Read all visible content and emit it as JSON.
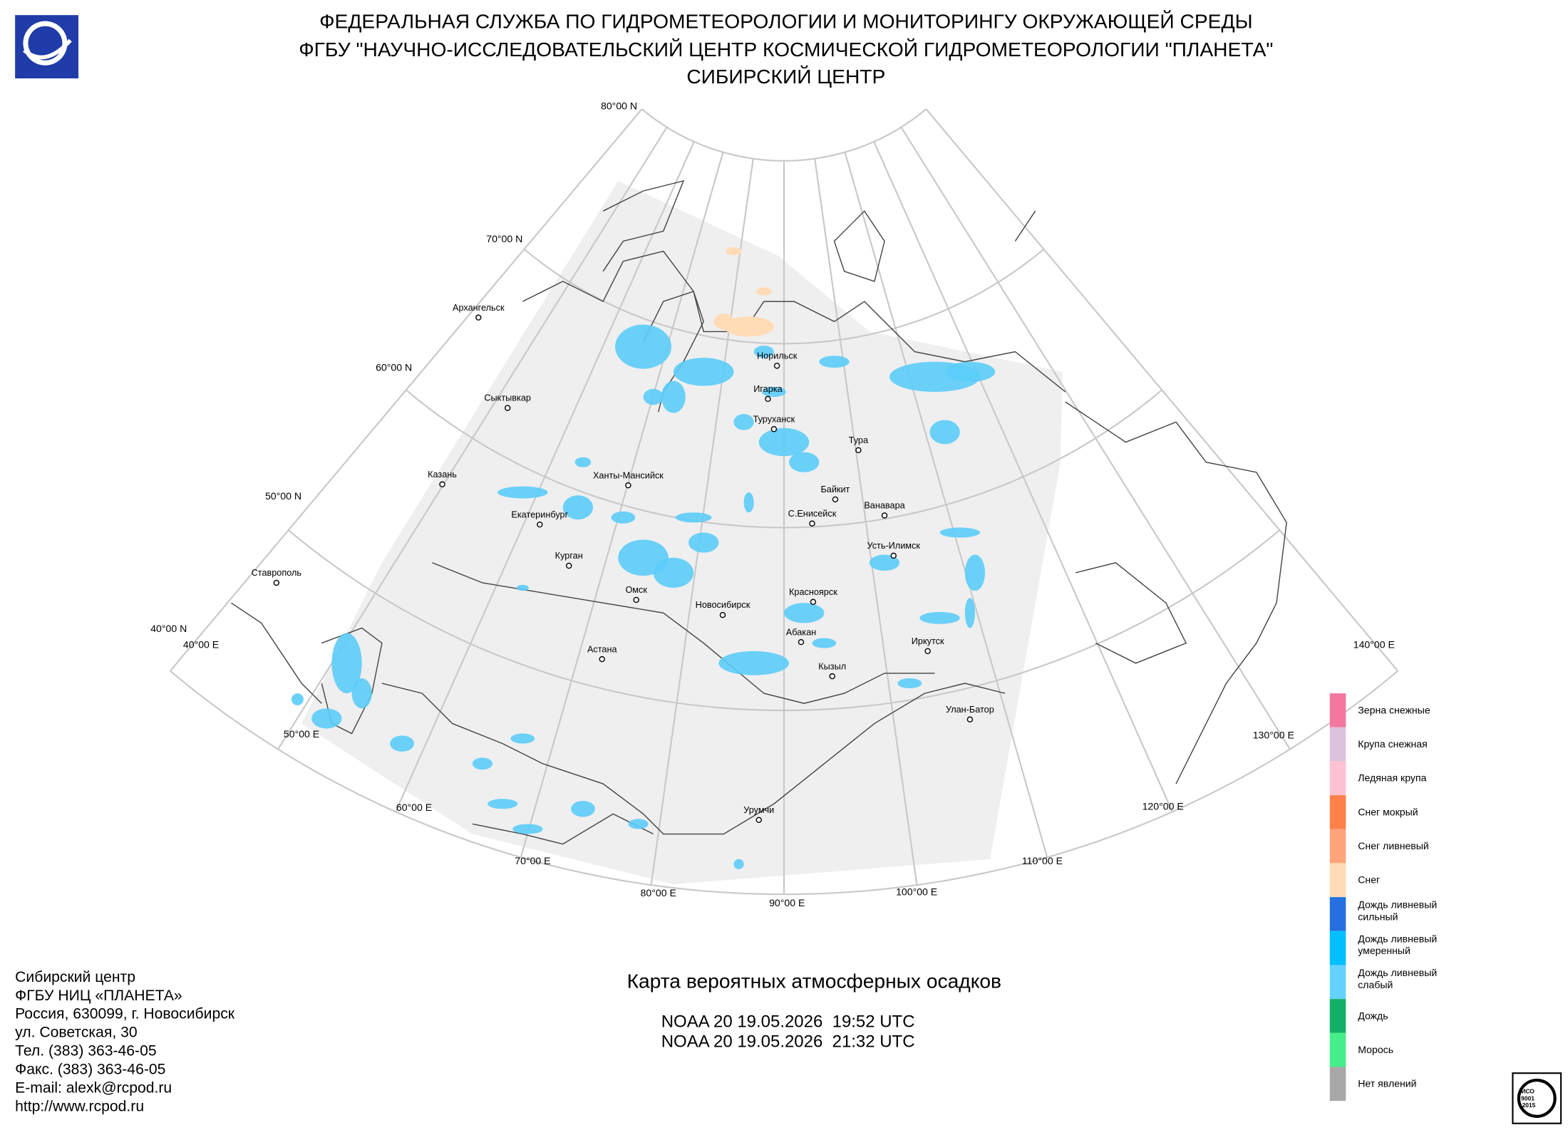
{
  "header": {
    "lines": [
      "ФЕДЕРАЛЬНАЯ СЛУЖБА ПО ГИДРОМЕТЕОРОЛОГИИ И МОНИТОРИНГУ ОКРУЖАЮЩЕЙ СРЕДЫ",
      "ФГБУ \"НАУЧНО-ИССЛЕДОВАТЕЛЬСКИЙ ЦЕНТР КОСМИЧЕСКОЙ ГИДРОМЕТЕОРОЛОГИИ \"ПЛАНЕТА\"",
      "СИБИРСКИЙ ЦЕНТР"
    ]
  },
  "map": {
    "parallels": [
      "80°00 N",
      "70°00 N",
      "60°00 N",
      "50°00 N",
      "40°00 N"
    ],
    "meridians": [
      "40°00 E",
      "50°00 E",
      "60°00 E",
      "70°00 E",
      "80°00 E",
      "90°00 E",
      "100°00 E",
      "110°00 E",
      "120°00 E",
      "130°00 E",
      "140°00 E"
    ],
    "cities": [
      "Архангельск",
      "Сыктывкар",
      "Казань",
      "Екатеринбург",
      "Курган",
      "Омск",
      "Ханты-Мансийск",
      "Ставрополь",
      "Астана",
      "Новосибирск",
      "Норильск",
      "Игарка",
      "Туруханск",
      "Тура",
      "Байкит",
      "С.Енисейск",
      "Ванавара",
      "Усть-Илимск",
      "Красноярск",
      "Абакан",
      "Кызыл",
      "Иркутск",
      "Улан-Батор",
      "Урумчи"
    ]
  },
  "legend": {
    "items": [
      {
        "label": [
          "Зерна снежные"
        ],
        "color": "#f2789f"
      },
      {
        "label": [
          "Крупа снежная"
        ],
        "color": "#dcc2dc"
      },
      {
        "label": [
          "Ледяная крупа"
        ],
        "color": "#ffc2d2"
      },
      {
        "label": [
          "Снег мокрый"
        ],
        "color": "#ff8048"
      },
      {
        "label": [
          "Снег ливневый"
        ],
        "color": "#ffa47a"
      },
      {
        "label": [
          "Снег"
        ],
        "color": "#ffdcb6"
      },
      {
        "label": [
          "Дождь ливневый",
          "сильный"
        ],
        "color": "#2470e0"
      },
      {
        "label": [
          "Дождь ливневый",
          "умеренный"
        ],
        "color": "#00c0ff"
      },
      {
        "label": [
          "Дождь ливневый",
          "слабый"
        ],
        "color": "#64d2ff"
      },
      {
        "label": [
          "Дождь"
        ],
        "color": "#12b064"
      },
      {
        "label": [
          "Морось"
        ],
        "color": "#44ee88"
      },
      {
        "label": [
          "Нет явлений"
        ],
        "color": "#a8a8a8"
      }
    ]
  },
  "contacts": {
    "lines": [
      "Сибирский центр",
      "ФГБУ НИЦ «ПЛАНЕТА»",
      "Россия, 630099, г. Новосибирск",
      "ул. Советская, 30",
      "Тел. (383) 363-46-05",
      "Факс. (383) 363-46-05",
      "E-mail: alexk@rcpod.ru",
      "http://www.rcpod.ru"
    ]
  },
  "product": {
    "title": "Карта вероятных атмосферных осадков",
    "passes": [
      "NOAA 20 19.05.2026  19:52 UTC",
      "NOAA 20 19.05.2026  21:32 UTC"
    ]
  },
  "certificate": {
    "lines": [
      "ИСО",
      "9001",
      "-2015"
    ]
  }
}
